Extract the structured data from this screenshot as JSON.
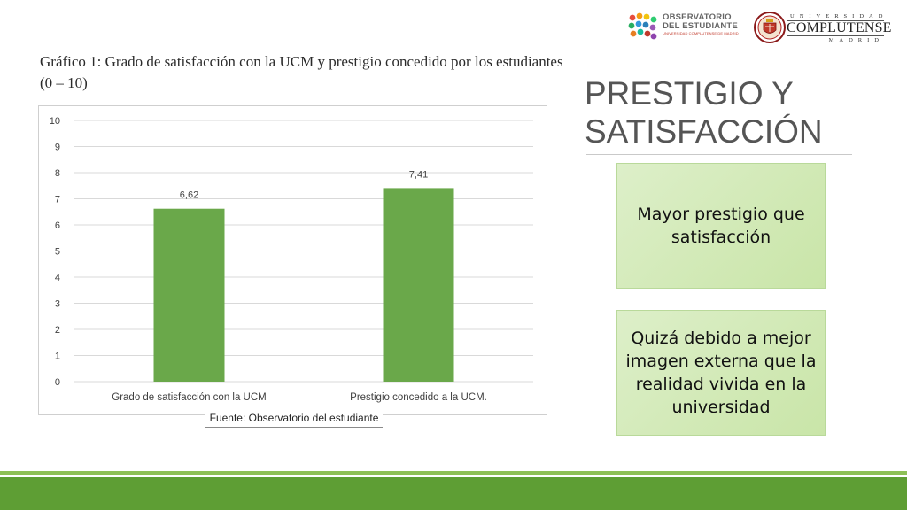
{
  "slide": {
    "caption": "Gráfico 1: Grado de satisfacción con la UCM y prestigio concedido por los estudiantes (0 – 10)",
    "title": "PRESTIGIO Y SATISFACCIÓN",
    "source": "Fuente: Observatorio del estudiante",
    "cards": [
      "Mayor prestigio que satisfacción",
      "Quizá debido a mejor imagen externa que la realidad vivida en la universidad"
    ]
  },
  "logos": {
    "observatorio": {
      "line1": "OBSERVATORIO",
      "line2": "DEL ESTUDIANTE",
      "sub": "UNIVERSIDAD COMPLUTENSE DE MADRID",
      "dot_colors": [
        "#e74c3c",
        "#f39c12",
        "#f1c40f",
        "#2ecc71",
        "#27ae60",
        "#3498db",
        "#2980b9",
        "#9b59b6",
        "#e67e22",
        "#1abc9c",
        "#c0392b",
        "#8e44ad"
      ]
    },
    "ucm": {
      "univ": "UNIVERSIDAD",
      "name": "COMPLUTENSE",
      "city": "MADRID"
    }
  },
  "colors": {
    "bar": "#6aa84a",
    "accent_top": "#8dc056",
    "accent_bottom": "#5e9e34"
  },
  "chart_data": {
    "type": "bar",
    "categories": [
      "Grado de satisfacción con la UCM",
      "Prestigio concedido a la UCM."
    ],
    "values": [
      6.62,
      7.41
    ],
    "data_labels": [
      "6,62",
      "7,41"
    ],
    "yticks": [
      "0",
      "1",
      "2",
      "3",
      "4",
      "5",
      "6",
      "7",
      "8",
      "9",
      "10"
    ],
    "ylim": [
      0,
      10
    ],
    "grid": true,
    "legend": "none"
  }
}
